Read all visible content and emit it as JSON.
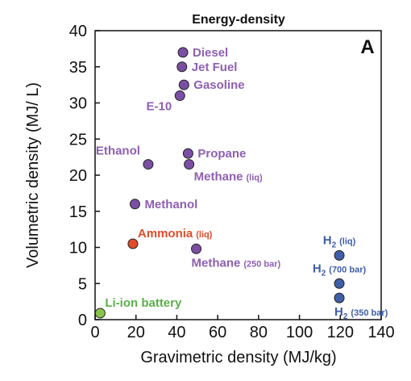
{
  "chart_data": {
    "type": "scatter",
    "title": "Energy-density",
    "panel_label": "A",
    "xlabel": "Gravimetric density (MJ/kg)",
    "ylabel": "Volumetric density (MJ/ L)",
    "xlim": [
      0,
      140
    ],
    "ylim": [
      0,
      40
    ],
    "xticks": [
      "0",
      "20",
      "40",
      "60",
      "80",
      "100",
      "120",
      "140"
    ],
    "yticks": [
      "0",
      "5",
      "10",
      "15",
      "20",
      "25",
      "30",
      "35",
      "40"
    ],
    "grid": false,
    "points": [
      {
        "label": "Diesel",
        "x": 43.0,
        "y": 37.0,
        "color": "#7a4fa3",
        "label_color": "#8e5fb3",
        "anchor": "right"
      },
      {
        "label": "Jet Fuel",
        "x": 42.5,
        "y": 35.0,
        "color": "#7a4fa3",
        "label_color": "#8e5fb3",
        "anchor": "right"
      },
      {
        "label": "Gasoline",
        "x": 43.5,
        "y": 32.5,
        "color": "#7a4fa3",
        "label_color": "#8e5fb3",
        "anchor": "right"
      },
      {
        "label": "E-10",
        "x": 41.5,
        "y": 31.0,
        "color": "#7a4fa3",
        "label_color": "#8e5fb3",
        "anchor": "left-below"
      },
      {
        "label": "Propane",
        "x": 45.5,
        "y": 23.0,
        "color": "#7a4fa3",
        "label_color": "#8e5fb3",
        "anchor": "right"
      },
      {
        "label": "Ethanol",
        "x": 26.0,
        "y": 21.5,
        "color": "#7a4fa3",
        "label_color": "#8e5fb3",
        "anchor": "left-above"
      },
      {
        "label": "Methane",
        "suffix": "(liq)",
        "x": 46.0,
        "y": 21.5,
        "color": "#7a4fa3",
        "label_color": "#8e5fb3",
        "anchor": "right-below"
      },
      {
        "label": "Methanol",
        "x": 19.5,
        "y": 16.0,
        "color": "#7a4fa3",
        "label_color": "#8e5fb3",
        "anchor": "right"
      },
      {
        "label": "Ammonia",
        "suffix": "(liq)",
        "x": 18.5,
        "y": 10.5,
        "color": "#e04c2a",
        "label_color": "#e04c2a",
        "anchor": "right-above"
      },
      {
        "label": "Methane",
        "suffix": "(250 bar)",
        "x": 49.5,
        "y": 9.8,
        "color": "#7a4fa3",
        "label_color": "#8e5fb3",
        "anchor": "below"
      },
      {
        "label": "H",
        "sub": "2",
        "suffix": "(liq)",
        "x": 119.5,
        "y": 8.9,
        "color": "#3f5ea8",
        "label_color": "#3f5ea8",
        "anchor": "above"
      },
      {
        "label": "H",
        "sub": "2",
        "suffix": "(700 bar)",
        "x": 119.5,
        "y": 5.0,
        "color": "#3f5ea8",
        "label_color": "#3f5ea8",
        "anchor": "above"
      },
      {
        "label": "H",
        "sub": "2",
        "suffix": "(350 bar)",
        "x": 119.5,
        "y": 3.0,
        "color": "#3f5ea8",
        "label_color": "#3f5ea8",
        "anchor": "below"
      },
      {
        "label": "Li-ion battery",
        "x": 2.5,
        "y": 0.9,
        "color": "#8cc34a",
        "label_color": "#5bb04a",
        "anchor": "right-above"
      }
    ]
  }
}
